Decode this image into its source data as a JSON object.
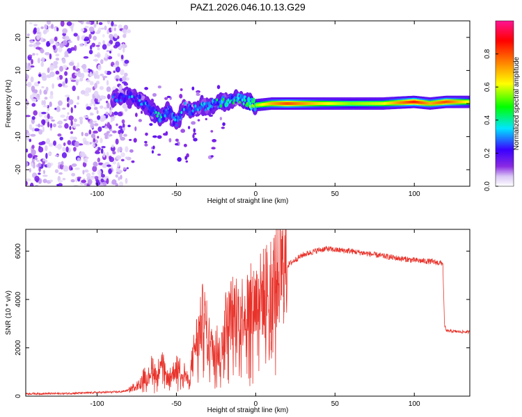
{
  "title": "PAZ1.2026.046.10.13.G29",
  "colorbar": {
    "label": "Normalized spectral amplitude",
    "ticks": [
      "0.0",
      "0.2",
      "0.4",
      "0.6",
      "0.8"
    ],
    "tick_values": [
      0.0,
      0.2,
      0.4,
      0.6,
      0.8
    ],
    "range": [
      0,
      1
    ],
    "colors": [
      "#ffffff",
      "#d9c6f5",
      "#8a2be2",
      "#3a00ff",
      "#00e5ff",
      "#00ff00",
      "#ffff00",
      "#ff8000",
      "#ff0000",
      "#ff1493"
    ]
  },
  "chart_data": [
    {
      "type": "heatmap",
      "title": "PAZ1.2026.046.10.13.G29",
      "xlabel": "Height of straight line (km)",
      "ylabel": "Frequency (Hz)",
      "xlim": [
        -145,
        135
      ],
      "ylim": [
        -25,
        25
      ],
      "xticks": [
        -100,
        -50,
        0,
        50,
        100
      ],
      "yticks": [
        -20,
        -10,
        0,
        10,
        20
      ],
      "xtick_labels": [
        "-100",
        "-50",
        "0",
        "50",
        "100"
      ],
      "ytick_labels": [
        "-20",
        "-10",
        "0",
        "10",
        "20"
      ],
      "ridge": {
        "x": [
          -90,
          -80,
          -70,
          -65,
          -60,
          -55,
          -50,
          -45,
          -40,
          -35,
          -30,
          -25,
          -20,
          -15,
          -10,
          -5,
          0,
          10,
          20,
          40,
          60,
          80,
          100,
          110,
          120,
          135
        ],
        "freq": [
          1.5,
          2.5,
          0,
          -2.5,
          -4,
          -2,
          -6,
          -1,
          -2,
          -0.5,
          -1,
          0,
          0.5,
          1,
          1.5,
          0.5,
          -0.5,
          0,
          0,
          0,
          0,
          0,
          0.5,
          0,
          0.5,
          0.5
        ],
        "amplitude": [
          0.25,
          0.3,
          0.3,
          0.35,
          0.35,
          0.3,
          0.35,
          0.3,
          0.3,
          0.35,
          0.35,
          0.4,
          0.4,
          0.4,
          0.4,
          0.45,
          0.55,
          0.7,
          0.8,
          0.65,
          0.55,
          0.6,
          0.85,
          0.7,
          0.8,
          0.6
        ]
      },
      "noise_region_x": [
        -145,
        -80
      ]
    },
    {
      "type": "line",
      "xlabel": "Height of straight line (km)",
      "ylabel": "SNR (10 * v/v)",
      "xlim": [
        -145,
        135
      ],
      "ylim": [
        0,
        6900
      ],
      "xticks": [
        -100,
        -50,
        0,
        50,
        100
      ],
      "yticks": [
        0,
        2000,
        4000,
        6000
      ],
      "xtick_labels": [
        "-100",
        "-50",
        "0",
        "50",
        "100"
      ],
      "ytick_labels": [
        "0",
        "2000",
        "4000",
        "6000"
      ],
      "color": "#e8332b",
      "series": [
        {
          "name": "SNR",
          "x": [
            -145,
            -120,
            -100,
            -85,
            -80,
            -75,
            -72,
            -70,
            -68,
            -65,
            -62,
            -60,
            -57,
            -55,
            -50,
            -45,
            -42,
            -40,
            -38,
            -35,
            -33,
            -31,
            -28,
            -25,
            -22,
            -20,
            -18,
            -15,
            -10,
            -5,
            0,
            5,
            10,
            15,
            20,
            25,
            30,
            35,
            40,
            45,
            50,
            60,
            70,
            80,
            90,
            100,
            110,
            115,
            118,
            119,
            120,
            125,
            130,
            135
          ],
          "values": [
            100,
            110,
            150,
            180,
            250,
            450,
            650,
            900,
            750,
            1300,
            800,
            1700,
            900,
            700,
            1200,
            1000,
            500,
            1500,
            2200,
            2800,
            3400,
            2800,
            2000,
            2300,
            1600,
            3200,
            3000,
            3500,
            3500,
            3700,
            3950,
            4300,
            4700,
            5100,
            5400,
            5650,
            5850,
            5950,
            6050,
            6100,
            6050,
            6000,
            5900,
            5800,
            5700,
            5620,
            5570,
            5520,
            5500,
            3000,
            2700,
            2680,
            2660,
            2650
          ]
        }
      ]
    }
  ]
}
